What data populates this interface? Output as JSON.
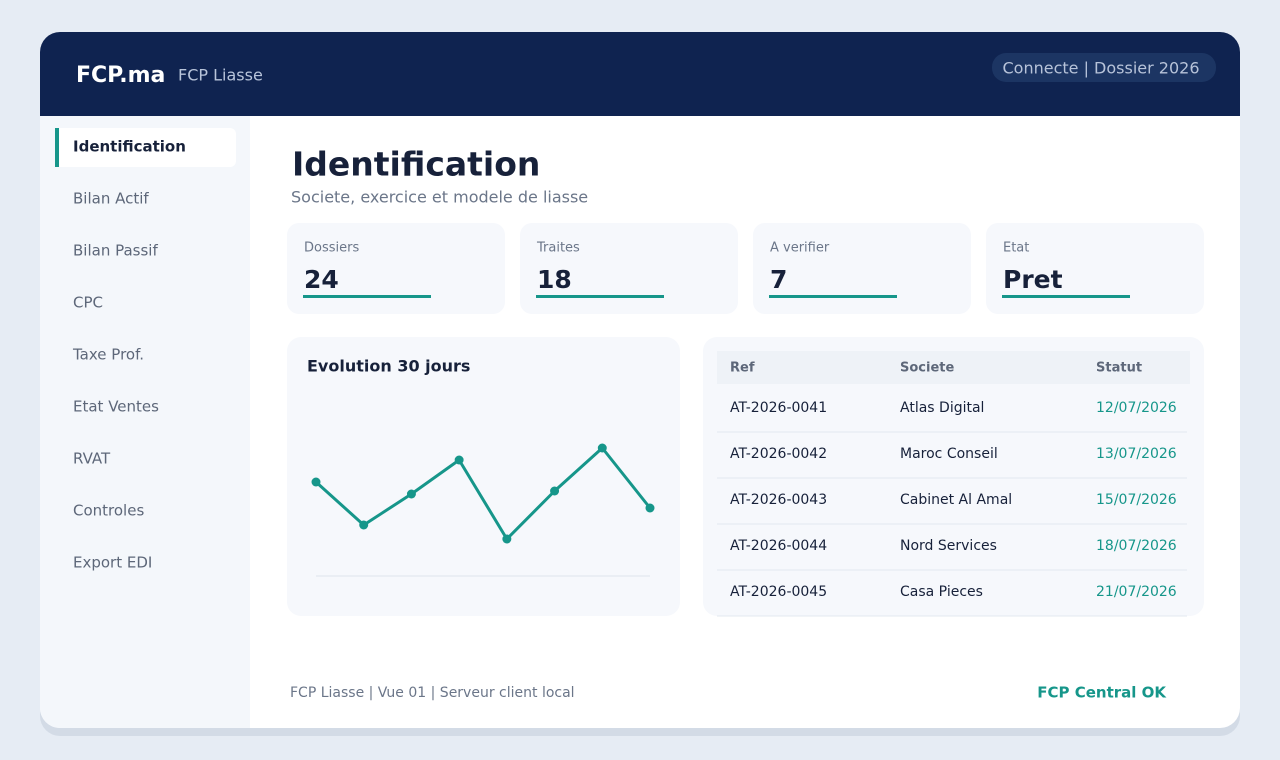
{
  "header": {
    "brand": "FCP.ma",
    "app": "FCP Liasse",
    "status": "Connecte | Dossier 2026"
  },
  "sidebar": {
    "items": [
      "Identification",
      "Bilan Actif",
      "Bilan Passif",
      "CPC",
      "Taxe Prof.",
      "Etat Ventes",
      "RVAT",
      "Controles",
      "Export EDI"
    ],
    "active": 0
  },
  "page": {
    "title": "Identification",
    "subtitle": "Societe, exercice et modele de liasse"
  },
  "kpis": [
    {
      "label": "Dossiers",
      "value": 24
    },
    {
      "label": "Traites",
      "value": 18
    },
    {
      "label": "A verifier",
      "value": 7
    },
    {
      "label": "Etat",
      "value": "Pret"
    }
  ],
  "chart_data": {
    "type": "line",
    "title": "Evolution 30 jours",
    "color": "#16968a",
    "values": [
      94,
      51,
      82,
      116,
      37,
      85,
      128,
      68
    ]
  },
  "table": {
    "columns": [
      "Ref",
      "Societe",
      "Statut"
    ],
    "rows": [
      [
        "AT-2026-0041",
        "Atlas Digital",
        "12/07/2026"
      ],
      [
        "AT-2026-0042",
        "Maroc Conseil",
        "13/07/2026"
      ],
      [
        "AT-2026-0043",
        "Cabinet Al Amal",
        "15/07/2026"
      ],
      [
        "AT-2026-0044",
        "Nord Services",
        "18/07/2026"
      ],
      [
        "AT-2026-0045",
        "Casa Pieces",
        "21/07/2026"
      ]
    ]
  },
  "footer": {
    "info": "FCP Liasse | Vue 01 | Serveur client local",
    "status": "FCP Central OK"
  }
}
